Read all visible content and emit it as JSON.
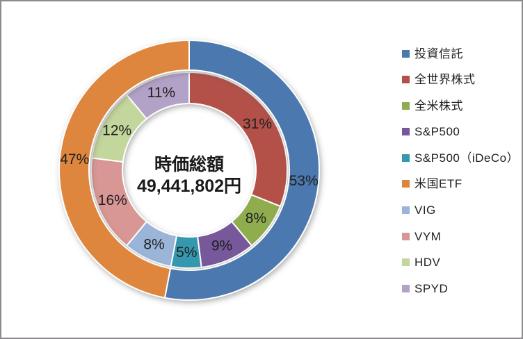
{
  "window": {
    "background_color": "#FFFFFF",
    "border_color": "#8C8A8C"
  },
  "chart_data": {
    "type": "donut",
    "title": "",
    "center_text": {
      "line1": "時価総額",
      "line2": "49,441,802円"
    },
    "rings": [
      {
        "name": "inner",
        "segments": [
          {
            "label": "全世界株式",
            "value": 31,
            "display": "31%",
            "color": "#B35149"
          },
          {
            "label": "全米株式",
            "value": 8,
            "display": "8%",
            "color": "#8FAC50"
          },
          {
            "label": "S&P500",
            "value": 9,
            "display": "9%",
            "color": "#77589B"
          },
          {
            "label": "S&P500（iDeCo）",
            "value": 5,
            "display": "5%",
            "color": "#3598AF"
          },
          {
            "label": "VIG",
            "value": 8,
            "display": "8%",
            "color": "#9AB5D8"
          },
          {
            "label": "VYM",
            "value": 16,
            "display": "16%",
            "color": "#D89694"
          },
          {
            "label": "HDV",
            "value": 12,
            "display": "12%",
            "color": "#C3D69B"
          },
          {
            "label": "SPYD",
            "value": 11,
            "display": "11%",
            "color": "#B3A2C7"
          }
        ]
      },
      {
        "name": "outer",
        "segments": [
          {
            "label": "投資信託",
            "value": 53,
            "display": "53%",
            "color": "#4B78AE"
          },
          {
            "label": "米国ETF",
            "value": 47,
            "display": "47%",
            "color": "#DE863C"
          }
        ]
      }
    ],
    "legend": [
      {
        "label": "投資信託",
        "color": "#4B78AE"
      },
      {
        "label": "全世界株式",
        "color": "#B35149"
      },
      {
        "label": "全米株式",
        "color": "#8FAC50"
      },
      {
        "label": "S&P500",
        "color": "#77589B"
      },
      {
        "label": "S&P500（iDeCo）",
        "color": "#3598AF"
      },
      {
        "label": "米国ETF",
        "color": "#DE863C"
      },
      {
        "label": "VIG",
        "color": "#9AB5D8"
      },
      {
        "label": "VYM",
        "color": "#D89694"
      },
      {
        "label": "HDV",
        "color": "#C3D69B"
      },
      {
        "label": "SPYD",
        "color": "#B3A2C7"
      }
    ],
    "legend_position": "right",
    "label_color": "#1F1F1F"
  }
}
